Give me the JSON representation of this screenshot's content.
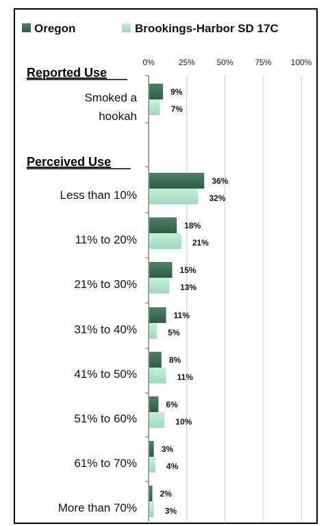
{
  "colors": {
    "oregon": "#2d5c45",
    "district": "#9fdbbe",
    "grid": "#c9c9c9",
    "axis": "#808080"
  },
  "chart_data": {
    "type": "bar",
    "orientation": "horizontal",
    "xlim": [
      0,
      100
    ],
    "x_ticks": [
      "0%",
      "25%",
      "50%",
      "75%",
      "100%"
    ],
    "legend_placement": "top",
    "grid": true,
    "series": [
      {
        "name": "Oregon",
        "values": [
          9,
          36,
          18,
          15,
          11,
          8,
          6,
          3,
          2
        ],
        "labels": [
          "9%",
          "36%",
          "18%",
          "15%",
          "11%",
          "8%",
          "6%",
          "3%",
          "2%"
        ]
      },
      {
        "name": "Brookings-Harbor SD 17C",
        "values": [
          7,
          32,
          21,
          13,
          5,
          11,
          10,
          4,
          3
        ],
        "labels": [
          "7%",
          "32%",
          "21%",
          "13%",
          "5%",
          "11%",
          "10%",
          "4%",
          "3%"
        ]
      }
    ],
    "sections": [
      {
        "title": "Reported Use",
        "categories": [
          [
            "Smoked a",
            "hookah"
          ]
        ]
      },
      {
        "title": "Perceived Use",
        "categories": [
          [
            "Less than 10%"
          ],
          [
            "11% to 20%"
          ],
          [
            "21% to 30%"
          ],
          [
            "31% to 40%"
          ],
          [
            "41% to 50%"
          ],
          [
            "51% to 60%"
          ],
          [
            "61% to 70%"
          ],
          [
            "More than 70%"
          ]
        ]
      }
    ]
  }
}
